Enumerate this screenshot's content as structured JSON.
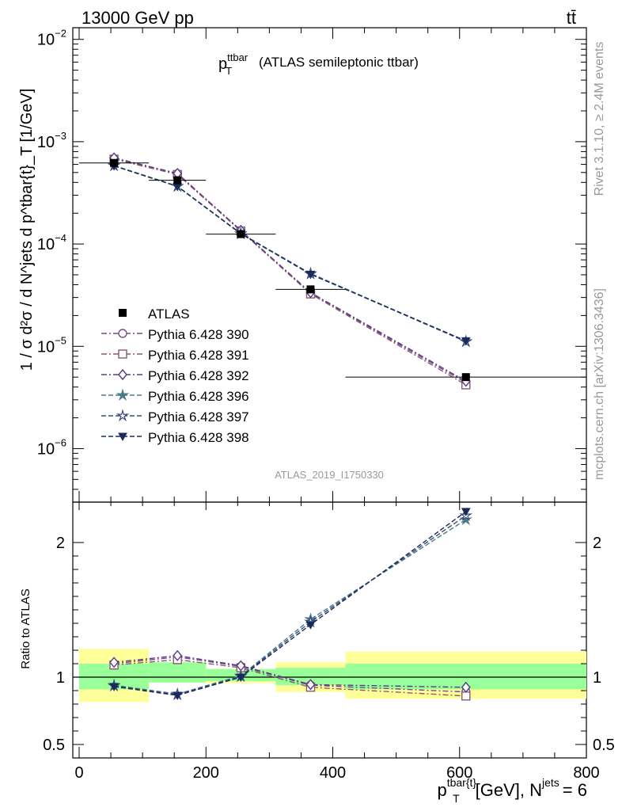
{
  "header": {
    "energy_label": "13000 GeV pp",
    "process_label": "tt̄",
    "analysis_id": "ATLAS_2019_I1750330",
    "side_label_top": "Rivet 3.1.10, ≥ 2.4M events",
    "side_label_bottom": "mcplots.cern.ch [arXiv:1306.3436]"
  },
  "chart_data": [
    {
      "type": "line",
      "panel": "main",
      "title_main": "p",
      "title_sup": "ttbar",
      "title_sub": "T",
      "title_rest": "(ATLAS semileptonic ttbar)",
      "ylabel": "1 / σ d²σ / d N^jets d p^tbar{t}_T [1/GeV]",
      "yscale": "log",
      "ylim": [
        3e-07,
        0.013
      ],
      "xlim": [
        -10,
        800
      ],
      "yticks": [
        {
          "value": 1e-06,
          "base": "10",
          "exp": "−6"
        },
        {
          "value": 1e-05,
          "base": "10",
          "exp": "−5"
        },
        {
          "value": 0.0001,
          "base": "10",
          "exp": "−4"
        },
        {
          "value": 0.001,
          "base": "10",
          "exp": "−3"
        },
        {
          "value": 0.01,
          "base": "10",
          "exp": "−2"
        }
      ],
      "legend_position": "left",
      "data": {
        "name": "ATLAS",
        "x": [
          55,
          155,
          255,
          365,
          610
        ],
        "y": [
          0.00062,
          0.00042,
          0.000125,
          3.6e-05,
          5e-06
        ],
        "xerr": [
          55,
          45,
          55,
          55,
          190
        ],
        "color": "#000000"
      },
      "series": [
        {
          "name": "Pythia 6.428 390",
          "marker": "circle-open",
          "dash": "dashdot",
          "color": "#7a4a8a",
          "x": [
            55,
            155,
            255,
            365,
            610
          ],
          "y": [
            0.000685,
            0.000485,
            0.000135,
            3.3e-05,
            4.4e-06
          ]
        },
        {
          "name": "Pythia 6.428 391",
          "marker": "square-open",
          "dash": "dashdot",
          "color": "#8a5a6a",
          "x": [
            55,
            155,
            255,
            365,
            610
          ],
          "y": [
            0.000675,
            0.000478,
            0.000134,
            3.25e-05,
            4.2e-06
          ]
        },
        {
          "name": "Pythia 6.428 392",
          "marker": "diamond-open",
          "dash": "dashdot",
          "color": "#5a3a8a",
          "x": [
            55,
            155,
            255,
            365,
            610
          ],
          "y": [
            0.000695,
            0.00049,
            0.000136,
            3.35e-05,
            4.55e-06
          ]
        },
        {
          "name": "Pythia 6.428 396",
          "marker": "star-filled",
          "dash": "dashed",
          "color": "#4a7a8a",
          "x": [
            55,
            155,
            255,
            365,
            610
          ],
          "y": [
            0.000585,
            0.000368,
            0.000127,
            5.15e-05,
            1.12e-05
          ]
        },
        {
          "name": "Pythia 6.428 397",
          "marker": "star-open",
          "dash": "dashed",
          "color": "#3a4a7a",
          "x": [
            55,
            155,
            255,
            365,
            610
          ],
          "y": [
            0.000582,
            0.000366,
            0.000126,
            5.1e-05,
            1.11e-05
          ]
        },
        {
          "name": "Pythia 6.428 398",
          "marker": "triangle-down-filled",
          "dash": "dashed",
          "color": "#1a2a5a",
          "x": [
            55,
            155,
            255,
            365,
            610
          ],
          "y": [
            0.00058,
            0.000365,
            0.000126,
            5.05e-05,
            1.13e-05
          ]
        }
      ]
    },
    {
      "type": "line",
      "panel": "ratio",
      "ylabel": "Ratio to ATLAS",
      "xlabel_main": "p",
      "xlabel_sup": "tbar{t}",
      "xlabel_sub": "T",
      "xlabel_rest": "[GeV], N",
      "xlabel_sup2": "jets",
      "xlabel_end": "= 6",
      "ylim": [
        0.4,
        2.3
      ],
      "xlim": [
        -10,
        800
      ],
      "xticks": [
        0,
        200,
        400,
        600,
        800
      ],
      "yticks": [
        0.5,
        1,
        2
      ],
      "bands": [
        {
          "x0": 0,
          "x1": 110,
          "inner": [
            0.91,
            1.1
          ],
          "outer": [
            0.815,
            1.21
          ]
        },
        {
          "x0": 110,
          "x1": 200,
          "inner": [
            0.96,
            1.11
          ],
          "outer": [
            0.96,
            1.11
          ]
        },
        {
          "x0": 200,
          "x1": 310,
          "inner": [
            0.97,
            1.06
          ],
          "outer": [
            0.955,
            1.06
          ]
        },
        {
          "x0": 310,
          "x1": 420,
          "inner": [
            0.94,
            1.07
          ],
          "outer": [
            0.89,
            1.11
          ]
        },
        {
          "x0": 420,
          "x1": 800,
          "inner": [
            0.91,
            1.1
          ],
          "outer": [
            0.84,
            1.19
          ]
        }
      ],
      "band_colors": {
        "inner": "#99ff99",
        "outer": "#ffff99"
      },
      "series": [
        {
          "name": "Pythia 6.428 390",
          "x": [
            55,
            155,
            255,
            365,
            610
          ],
          "y": [
            1.1,
            1.15,
            1.08,
            0.94,
            0.89
          ]
        },
        {
          "name": "Pythia 6.428 391",
          "x": [
            55,
            155,
            255,
            365,
            610
          ],
          "y": [
            1.09,
            1.13,
            1.07,
            0.925,
            0.86
          ]
        },
        {
          "name": "Pythia 6.428 392",
          "x": [
            55,
            155,
            255,
            365,
            610
          ],
          "y": [
            1.11,
            1.16,
            1.085,
            0.945,
            0.925
          ]
        },
        {
          "name": "Pythia 6.428 396",
          "x": [
            55,
            155,
            255,
            365,
            610
          ],
          "y": [
            0.94,
            0.875,
            1.01,
            1.43,
            2.17
          ]
        },
        {
          "name": "Pythia 6.428 397",
          "x": [
            55,
            155,
            255,
            365,
            610
          ],
          "y": [
            0.935,
            0.87,
            1.005,
            1.41,
            2.2
          ]
        },
        {
          "name": "Pythia 6.428 398",
          "x": [
            55,
            155,
            255,
            365,
            610
          ],
          "y": [
            0.93,
            0.865,
            1.0,
            1.39,
            2.23
          ]
        }
      ]
    }
  ]
}
